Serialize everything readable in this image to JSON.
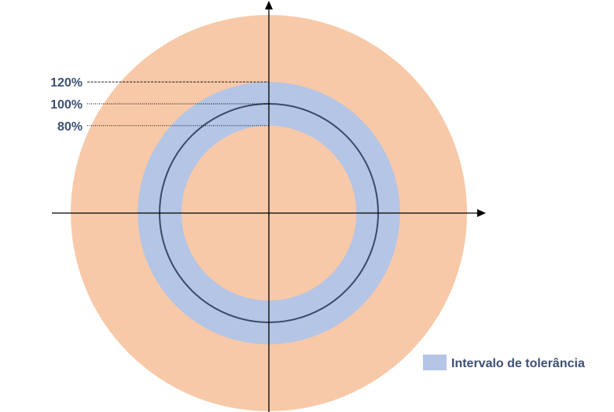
{
  "diagram": {
    "levels": [
      {
        "label": "120%",
        "value": 120
      },
      {
        "label": "100%",
        "value": 100
      },
      {
        "label": "80%",
        "value": 80
      }
    ],
    "legend": {
      "label": "Intervalo de tolerância"
    },
    "colors": {
      "outer_fill": "#f7c9a8",
      "tolerance_band": "#b4c5e6",
      "nominal_circle": "#3c4a64",
      "axis": "#000000",
      "label_text": "#3c4f74"
    }
  }
}
